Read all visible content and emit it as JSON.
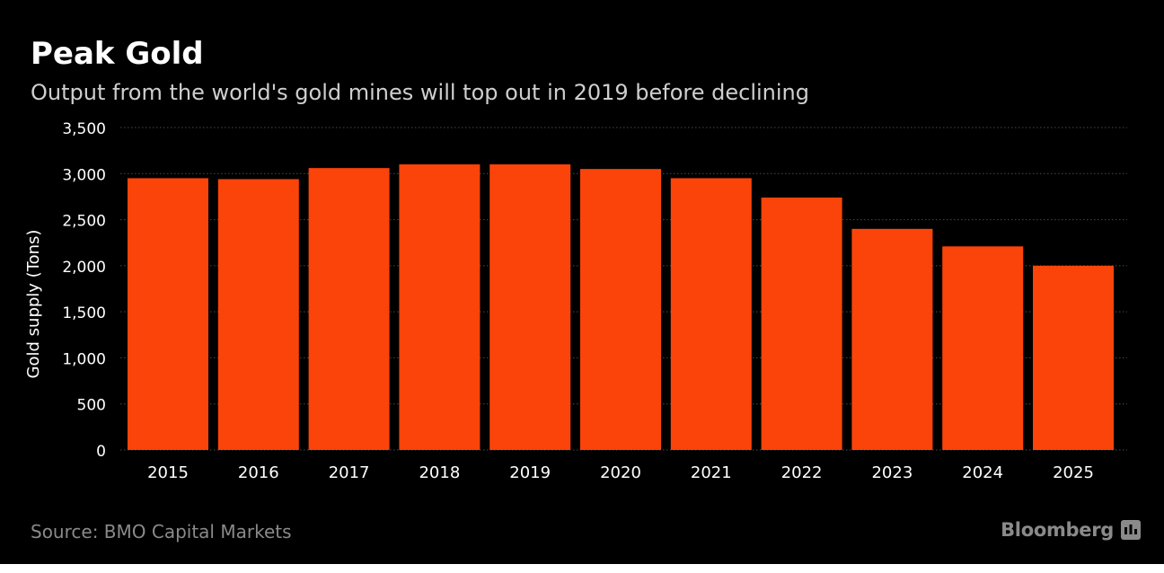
{
  "header": {
    "title": "Peak Gold",
    "subtitle": "Output from the world's gold mines will top out in 2019 before declining"
  },
  "footer": {
    "source": "Source: BMO Capital Markets",
    "brand": "Bloomberg",
    "brand_icon": "bloomberg-terminal-icon"
  },
  "colors": {
    "background": "#000000",
    "bar": "#FB4409",
    "text": "#FFFFFF",
    "muted": "#8A8A8A",
    "grid": "#4A4A4A"
  },
  "chart_data": {
    "type": "bar",
    "title": "Peak Gold",
    "subtitle": "Output from the world's gold mines will top out in 2019 before declining",
    "xlabel": "",
    "ylabel": "Gold supply (Tons)",
    "categories": [
      "2015",
      "2016",
      "2017",
      "2018",
      "2019",
      "2020",
      "2021",
      "2022",
      "2023",
      "2024",
      "2025"
    ],
    "values": [
      2950,
      2940,
      3060,
      3100,
      3100,
      3050,
      2950,
      2740,
      2400,
      2210,
      2000
    ],
    "ylim": [
      0,
      3500
    ],
    "yticks": [
      0,
      500,
      1000,
      1500,
      2000,
      2500,
      3000,
      3500
    ],
    "ytick_labels": [
      "0",
      "500",
      "1,000",
      "1,500",
      "2,000",
      "2,500",
      "3,000",
      "3,500"
    ],
    "grid": "horizontal dotted",
    "legend": "none"
  }
}
